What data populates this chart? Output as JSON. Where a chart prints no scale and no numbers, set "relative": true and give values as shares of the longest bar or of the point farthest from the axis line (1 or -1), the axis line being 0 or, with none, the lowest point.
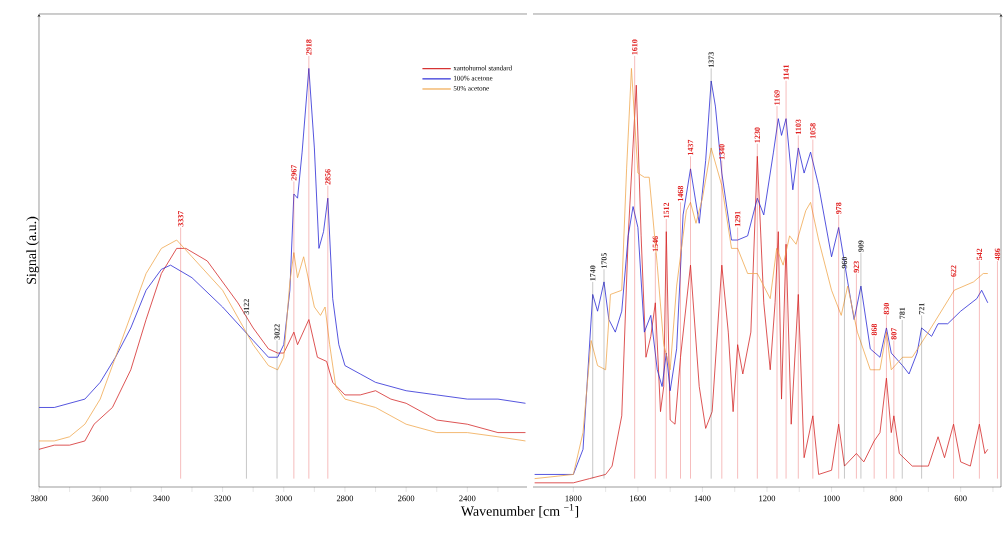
{
  "chart_data": [
    {
      "type": "line",
      "relative": true,
      "ylabel": "Signal (a.u.)",
      "legend": "top right",
      "xlim": [
        3800,
        2205
      ],
      "xticks": [
        3800,
        {
          "value": 3700,
          "label": null
        },
        3600,
        {
          "value": 3500,
          "label": null
        },
        3400,
        {
          "value": 3300,
          "label": null
        },
        3200,
        {
          "value": 3100,
          "label": null
        },
        3000,
        {
          "value": 2900,
          "label": null
        },
        2800,
        {
          "value": 2700,
          "label": null
        },
        2600,
        {
          "value": 2500,
          "label": null
        },
        2400,
        {
          "value": 2300,
          "label": null
        }
      ],
      "series": [
        {
          "name": "xantohumol standard",
          "color": "#d42a2a",
          "x": [
            3800,
            3750,
            3700,
            3650,
            3620,
            3560,
            3500,
            3450,
            3400,
            3350,
            3320,
            3250,
            3200,
            3150,
            3100,
            3050,
            3020,
            3000,
            2967,
            2955,
            2918,
            2890,
            2860,
            2840,
            2800,
            2750,
            2700,
            2650,
            2600,
            2500,
            2400,
            2300,
            2210
          ],
          "values": [
            0.09,
            0.1,
            0.1,
            0.11,
            0.15,
            0.19,
            0.28,
            0.4,
            0.51,
            0.57,
            0.57,
            0.54,
            0.49,
            0.44,
            0.38,
            0.33,
            0.32,
            0.32,
            0.37,
            0.34,
            0.4,
            0.31,
            0.3,
            0.25,
            0.22,
            0.22,
            0.23,
            0.21,
            0.2,
            0.16,
            0.15,
            0.13,
            0.13
          ]
        },
        {
          "name": "100% acetone",
          "color": "#2b2bd6",
          "x": [
            3800,
            3750,
            3700,
            3650,
            3600,
            3550,
            3500,
            3450,
            3400,
            3370,
            3300,
            3200,
            3100,
            3050,
            3020,
            3000,
            2980,
            2967,
            2955,
            2940,
            2918,
            2900,
            2885,
            2870,
            2856,
            2840,
            2820,
            2800,
            2750,
            2700,
            2600,
            2500,
            2400,
            2300,
            2210
          ],
          "values": [
            0.19,
            0.19,
            0.2,
            0.21,
            0.25,
            0.31,
            0.38,
            0.47,
            0.52,
            0.53,
            0.5,
            0.43,
            0.35,
            0.31,
            0.31,
            0.34,
            0.47,
            0.7,
            0.69,
            0.8,
            1.0,
            0.81,
            0.57,
            0.61,
            0.69,
            0.45,
            0.34,
            0.29,
            0.27,
            0.25,
            0.23,
            0.22,
            0.21,
            0.21,
            0.2
          ]
        },
        {
          "name": "50% acetone",
          "color": "#f0a850",
          "x": [
            3800,
            3750,
            3700,
            3650,
            3600,
            3550,
            3500,
            3450,
            3400,
            3350,
            3300,
            3200,
            3100,
            3050,
            3020,
            3000,
            2980,
            2967,
            2955,
            2935,
            2900,
            2880,
            2865,
            2850,
            2830,
            2800,
            2750,
            2700,
            2600,
            2500,
            2400,
            2300,
            2210
          ],
          "values": [
            0.11,
            0.11,
            0.12,
            0.15,
            0.21,
            0.31,
            0.41,
            0.51,
            0.57,
            0.59,
            0.55,
            0.47,
            0.34,
            0.29,
            0.28,
            0.31,
            0.49,
            0.56,
            0.5,
            0.55,
            0.43,
            0.41,
            0.43,
            0.34,
            0.24,
            0.21,
            0.2,
            0.19,
            0.15,
            0.13,
            0.13,
            0.12,
            0.11
          ]
        }
      ],
      "ref_lines": [
        {
          "axis": "x",
          "value": 3337,
          "label": "3337",
          "color": "#e02020"
        },
        {
          "axis": "x",
          "value": 3122,
          "label": "3122",
          "color": "#404040"
        },
        {
          "axis": "x",
          "value": 3022,
          "label": "3022",
          "color": "#404040"
        },
        {
          "axis": "x",
          "value": 2967,
          "label": "2967",
          "color": "#e02020"
        },
        {
          "axis": "x",
          "value": 2918,
          "label": "2918",
          "color": "#e02020"
        },
        {
          "axis": "x",
          "value": 2856,
          "label": "2856",
          "color": "#e02020"
        }
      ]
    },
    {
      "type": "line",
      "relative": true,
      "xlabel": "Wavenumber [cm $^{−1}$]",
      "xlim": [
        1925,
        475
      ],
      "xticks": [
        1800,
        {
          "value": 1700,
          "label": null
        },
        1600,
        {
          "value": 1500,
          "label": null
        },
        1400,
        {
          "value": 1300,
          "label": null
        },
        1200,
        {
          "value": 1100,
          "label": null
        },
        1000,
        {
          "value": 900,
          "label": null
        },
        800,
        {
          "value": 700,
          "label": null
        },
        600,
        {
          "value": 500,
          "label": null
        }
      ],
      "series": [
        {
          "color": "#d42a2a",
          "x": [
            1920,
            1800,
            1750,
            1700,
            1680,
            1650,
            1630,
            1605,
            1590,
            1575,
            1560,
            1546,
            1530,
            1520,
            1512,
            1500,
            1485,
            1468,
            1437,
            1410,
            1390,
            1370,
            1340,
            1320,
            1305,
            1291,
            1275,
            1250,
            1230,
            1210,
            1190,
            1175,
            1165,
            1155,
            1141,
            1125,
            1103,
            1085,
            1058,
            1040,
            1000,
            978,
            960,
            923,
            900,
            868,
            850,
            830,
            815,
            807,
            790,
            750,
            700,
            670,
            650,
            622,
            600,
            570,
            542,
            525,
            516
          ],
          "values": [
            0.01,
            0.01,
            0.02,
            0.03,
            0.05,
            0.17,
            0.6,
            0.96,
            0.6,
            0.31,
            0.36,
            0.44,
            0.18,
            0.24,
            0.61,
            0.16,
            0.15,
            0.31,
            0.53,
            0.24,
            0.14,
            0.18,
            0.53,
            0.37,
            0.18,
            0.34,
            0.27,
            0.37,
            0.79,
            0.44,
            0.28,
            0.44,
            0.61,
            0.21,
            0.58,
            0.15,
            0.46,
            0.07,
            0.17,
            0.03,
            0.04,
            0.15,
            0.05,
            0.08,
            0.06,
            0.11,
            0.13,
            0.26,
            0.13,
            0.17,
            0.08,
            0.05,
            0.05,
            0.12,
            0.07,
            0.15,
            0.06,
            0.05,
            0.15,
            0.08,
            0.09
          ]
        },
        {
          "color": "#2b2bd6",
          "x": [
            1920,
            1850,
            1800,
            1770,
            1740,
            1725,
            1705,
            1690,
            1670,
            1650,
            1630,
            1615,
            1600,
            1580,
            1560,
            1540,
            1525,
            1512,
            1500,
            1480,
            1460,
            1437,
            1410,
            1390,
            1373,
            1360,
            1340,
            1310,
            1291,
            1260,
            1230,
            1210,
            1180,
            1165,
            1155,
            1141,
            1120,
            1103,
            1085,
            1065,
            1040,
            1000,
            978,
            950,
            930,
            909,
            880,
            850,
            830,
            815,
            780,
            760,
            735,
            721,
            690,
            670,
            640,
            600,
            550,
            535,
            516
          ],
          "values": [
            0.03,
            0.03,
            0.03,
            0.09,
            0.46,
            0.42,
            0.49,
            0.4,
            0.37,
            0.42,
            0.6,
            0.67,
            0.62,
            0.37,
            0.41,
            0.28,
            0.24,
            0.32,
            0.23,
            0.33,
            0.65,
            0.76,
            0.63,
            0.78,
            0.97,
            0.91,
            0.75,
            0.59,
            0.59,
            0.6,
            0.69,
            0.65,
            0.8,
            0.88,
            0.84,
            0.88,
            0.71,
            0.81,
            0.75,
            0.8,
            0.72,
            0.55,
            0.62,
            0.49,
            0.4,
            0.48,
            0.33,
            0.31,
            0.38,
            0.32,
            0.29,
            0.27,
            0.32,
            0.38,
            0.36,
            0.39,
            0.39,
            0.42,
            0.45,
            0.47,
            0.44
          ]
        },
        {
          "color": "#f0a850",
          "x": [
            1920,
            1800,
            1770,
            1745,
            1725,
            1700,
            1685,
            1650,
            1635,
            1620,
            1600,
            1580,
            1565,
            1540,
            1520,
            1500,
            1480,
            1450,
            1437,
            1420,
            1400,
            1373,
            1340,
            1310,
            1291,
            1260,
            1230,
            1190,
            1170,
            1150,
            1130,
            1110,
            1080,
            1065,
            1040,
            1000,
            970,
            950,
            920,
            880,
            850,
            830,
            815,
            780,
            750,
            700,
            660,
            620,
            560,
            530,
            516
          ],
          "values": [
            0.02,
            0.03,
            0.13,
            0.35,
            0.29,
            0.28,
            0.46,
            0.47,
            0.76,
            1.0,
            0.75,
            0.74,
            0.74,
            0.53,
            0.34,
            0.28,
            0.48,
            0.66,
            0.68,
            0.63,
            0.69,
            0.81,
            0.72,
            0.57,
            0.57,
            0.51,
            0.51,
            0.45,
            0.57,
            0.53,
            0.6,
            0.58,
            0.66,
            0.68,
            0.59,
            0.47,
            0.41,
            0.48,
            0.37,
            0.28,
            0.28,
            0.37,
            0.28,
            0.31,
            0.31,
            0.37,
            0.42,
            0.47,
            0.49,
            0.51,
            0.51
          ]
        }
      ],
      "ref_lines": [
        {
          "axis": "x",
          "value": 1740,
          "label": "1740",
          "color": "#404040"
        },
        {
          "axis": "x",
          "value": 1705,
          "label": "1705",
          "color": "#404040"
        },
        {
          "axis": "x",
          "value": 1610,
          "label": "1610",
          "color": "#e02020"
        },
        {
          "axis": "x",
          "value": 1546,
          "label": "1546",
          "color": "#e02020"
        },
        {
          "axis": "x",
          "value": 1512,
          "label": "1512",
          "color": "#e02020"
        },
        {
          "axis": "x",
          "value": 1468,
          "label": "1468",
          "color": "#e02020"
        },
        {
          "axis": "x",
          "value": 1437,
          "label": "1437",
          "color": "#e02020"
        },
        {
          "axis": "x",
          "value": 1373,
          "label": "1373",
          "color": "#404040"
        },
        {
          "axis": "x",
          "value": 1340,
          "label": "1340",
          "color": "#e02020"
        },
        {
          "axis": "x",
          "value": 1291,
          "label": "1291",
          "color": "#e02020"
        },
        {
          "axis": "x",
          "value": 1230,
          "label": "1230",
          "color": "#e02020"
        },
        {
          "axis": "x",
          "value": 1169,
          "label": "1169",
          "color": "#e02020"
        },
        {
          "axis": "x",
          "value": 1141,
          "label": "1141",
          "color": "#e02020"
        },
        {
          "axis": "x",
          "value": 1103,
          "label": "1103",
          "color": "#e02020"
        },
        {
          "axis": "x",
          "value": 1058,
          "label": "1058",
          "color": "#e02020"
        },
        {
          "axis": "x",
          "value": 978,
          "label": "978",
          "color": "#e02020"
        },
        {
          "axis": "x",
          "value": 960,
          "label": "960",
          "color": "#404040"
        },
        {
          "axis": "x",
          "value": 923,
          "label": "923",
          "color": "#e02020"
        },
        {
          "axis": "x",
          "value": 909,
          "label": "909",
          "color": "#404040"
        },
        {
          "axis": "x",
          "value": 868,
          "label": "868",
          "color": "#e02020"
        },
        {
          "axis": "x",
          "value": 830,
          "label": "830",
          "color": "#e02020"
        },
        {
          "axis": "x",
          "value": 807,
          "label": "807",
          "color": "#e02020"
        },
        {
          "axis": "x",
          "value": 781,
          "label": "781",
          "color": "#404040"
        },
        {
          "axis": "x",
          "value": 721,
          "label": "721",
          "color": "#404040"
        },
        {
          "axis": "x",
          "value": 622,
          "label": "622",
          "color": "#e02020"
        },
        {
          "axis": "x",
          "value": 542,
          "label": "542",
          "color": "#e02020"
        },
        {
          "axis": "x",
          "value": 486,
          "label": "486",
          "color": "#e02020"
        }
      ]
    }
  ]
}
